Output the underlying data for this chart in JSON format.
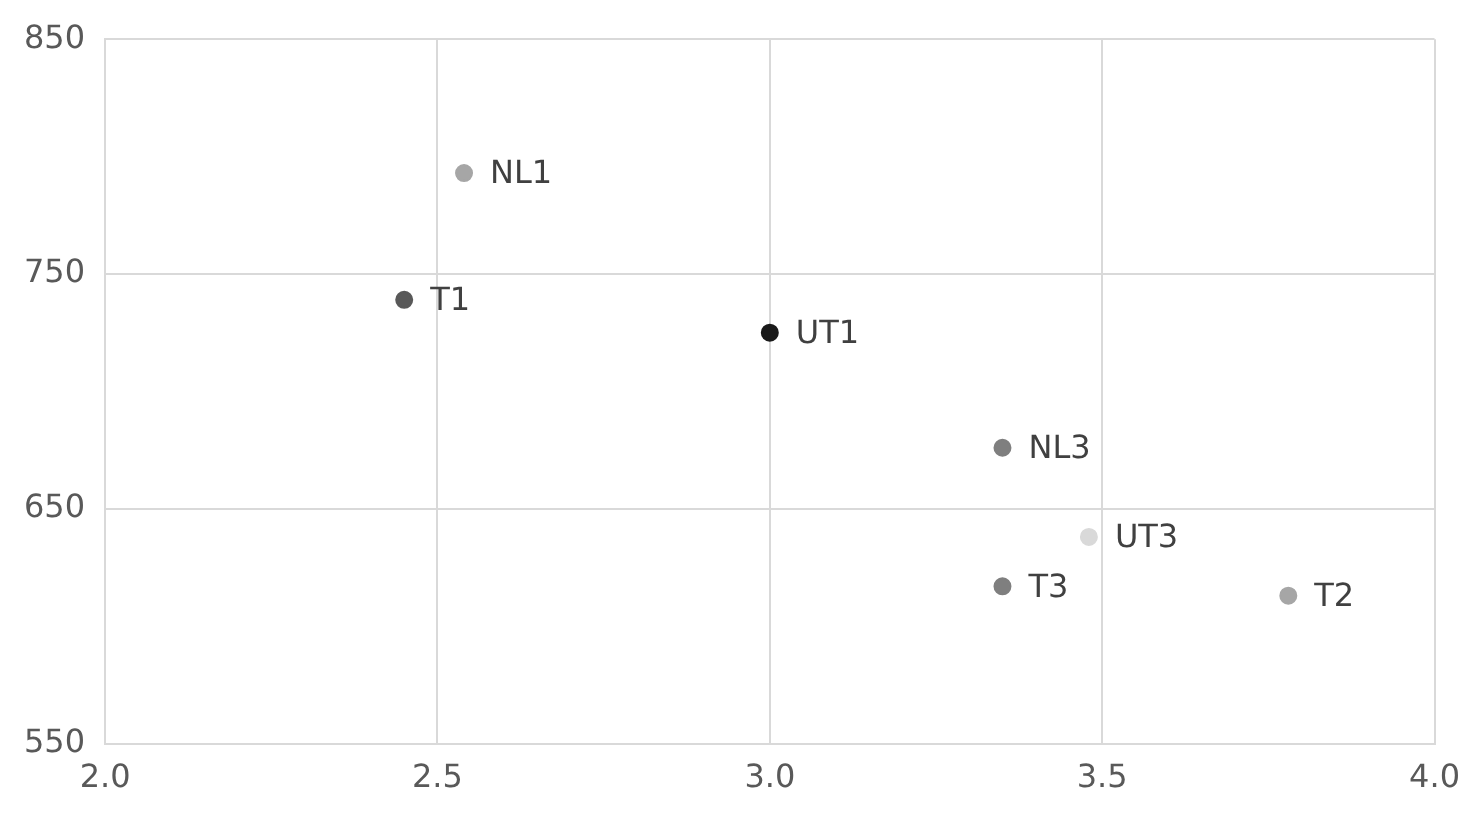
{
  "chart_data": {
    "type": "scatter",
    "xlim": [
      2.0,
      4.0
    ],
    "xticks": [
      {
        "value": 2.0,
        "label": "2.0"
      },
      {
        "value": 2.5,
        "label": "2.5"
      },
      {
        "value": 3.0,
        "label": "3.0"
      },
      {
        "value": 3.5,
        "label": "3.5"
      },
      {
        "value": 4.0,
        "label": "4.0"
      }
    ],
    "ylim": [
      550,
      850
    ],
    "yticks": [
      550,
      650,
      750,
      850
    ],
    "grid": true,
    "legend": false,
    "marker": "circle",
    "series": [
      {
        "name": "NL1",
        "color": "#a6a6a6",
        "x": [
          2.54
        ],
        "values": [
          793
        ]
      },
      {
        "name": "T1",
        "color": "#595959",
        "x": [
          2.45
        ],
        "values": [
          739
        ]
      },
      {
        "name": "UT1",
        "color": "#1a1a1a",
        "x": [
          3.0
        ],
        "values": [
          725
        ]
      },
      {
        "name": "NL3",
        "color": "#7f7f7f",
        "x": [
          3.35
        ],
        "values": [
          676
        ]
      },
      {
        "name": "UT3",
        "color": "#d9d9d9",
        "x": [
          3.48
        ],
        "values": [
          638
        ]
      },
      {
        "name": "T3",
        "color": "#7f7f7f",
        "x": [
          3.35
        ],
        "values": [
          617
        ]
      },
      {
        "name": "T2",
        "color": "#a6a6a6",
        "x": [
          3.78
        ],
        "values": [
          613
        ]
      }
    ]
  }
}
